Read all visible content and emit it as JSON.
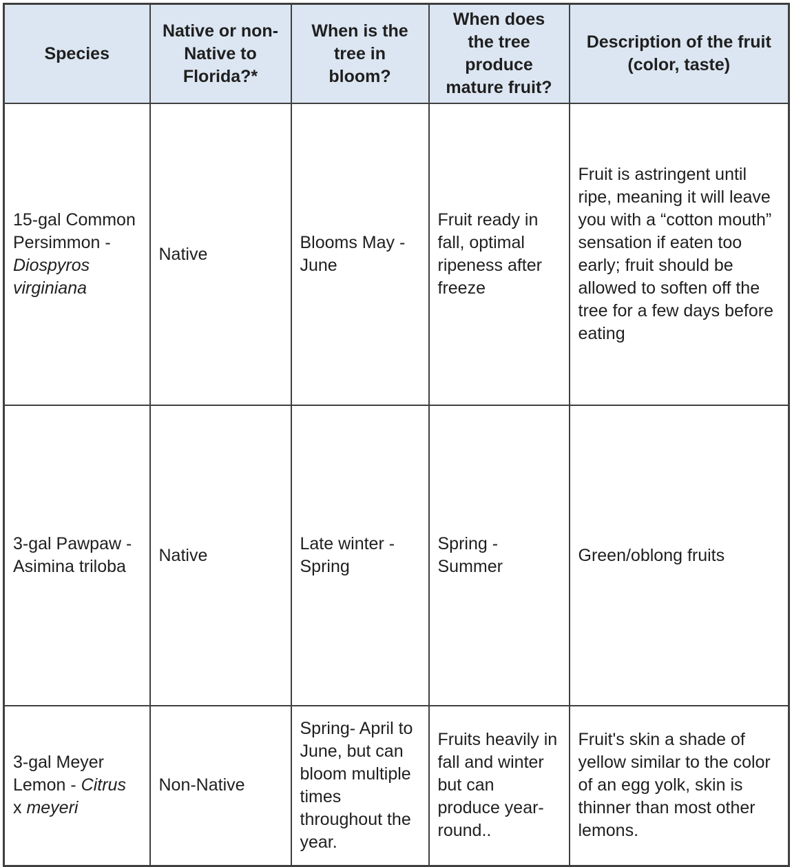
{
  "table": {
    "headers": [
      "Species",
      "Native or non-Native to Florida?*",
      "When is the tree in bloom?",
      "When does the tree produce mature fruit?",
      "Description of the fruit (color, taste)"
    ],
    "rows": [
      {
        "species": [
          {
            "text": "15-gal Common Persimmon - ",
            "italic": false
          },
          {
            "text": "Diospyros virginiana",
            "italic": true
          }
        ],
        "native": "Native",
        "bloom": "Blooms May - June",
        "mature_fruit": "Fruit ready in fall, optimal ripeness after freeze",
        "description": "Fruit is astringent until ripe, meaning it will leave you with a “cotton mouth” sensation if eaten too early; fruit should be allowed to soften off the tree for a few days before eating"
      },
      {
        "species": [
          {
            "text": "3-gal Pawpaw - Asimina triloba",
            "italic": false
          }
        ],
        "native": "Native",
        "bloom": "Late winter - Spring",
        "mature_fruit": "Spring - Summer",
        "description": "Green/oblong fruits"
      },
      {
        "species": [
          {
            "text": "3-gal Meyer Lemon - ",
            "italic": false
          },
          {
            "text": "Citrus",
            "italic": true
          },
          {
            "text": " x ",
            "italic": false
          },
          {
            "text": "meyeri",
            "italic": true
          }
        ],
        "native": "Non-Native",
        "bloom": "Spring- April to June, but can bloom multiple times throughout the year.",
        "mature_fruit": "Fruits heavily in fall and winter but can produce year-round..",
        "description": "Fruit's skin a shade of yellow similar to the color of an egg yolk, skin is thinner than most other lemons."
      }
    ],
    "colors": {
      "header_background": "#dce6f2",
      "border": "#3f3f3f",
      "text": "#1f1f1f"
    }
  }
}
